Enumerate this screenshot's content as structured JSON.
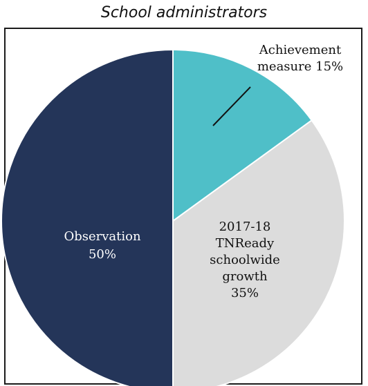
{
  "title": "School administrators",
  "chart_data": {
    "type": "pie",
    "title": "School administrators",
    "slices": [
      {
        "label_lines": [
          "Achievement",
          "measure 15%"
        ],
        "value": 15,
        "color": "#4fbfc8"
      },
      {
        "label_lines": [
          "2017-18",
          "TNReady",
          "schoolwide",
          "growth",
          "35%"
        ],
        "value": 35,
        "color": "#dcdcdc"
      },
      {
        "label_lines": [
          "Observation",
          "50%"
        ],
        "value": 50,
        "color": "#243559"
      }
    ]
  }
}
